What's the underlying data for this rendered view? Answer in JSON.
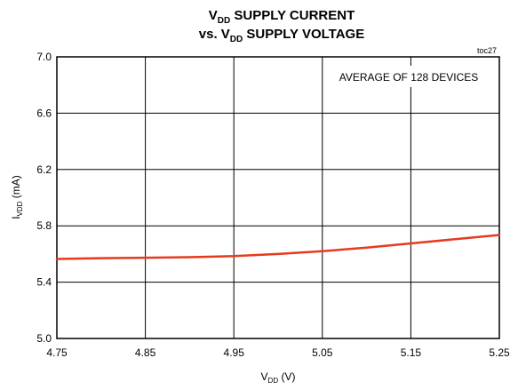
{
  "chart_data": {
    "type": "line",
    "title_line1": {
      "pre": "V",
      "sub": "DD",
      "post": " SUPPLY CURRENT"
    },
    "title_line2": {
      "pre": "vs. V",
      "sub": "DD",
      "post": " SUPPLY VOLTAGE"
    },
    "figure_id": "toc27",
    "annotation": "AVERAGE OF 128 DEVICES",
    "xlabel": {
      "pre": "V",
      "sub": "DD",
      "post": " (V)"
    },
    "ylabel": {
      "pre": "I",
      "sub": "VDD",
      "post": " (mA)"
    },
    "xlim": [
      4.75,
      5.25
    ],
    "ylim": [
      5.0,
      7.0
    ],
    "x_ticks": [
      "4.75",
      "4.85",
      "4.95",
      "5.05",
      "5.15",
      "5.25"
    ],
    "y_ticks": [
      "5.0",
      "5.4",
      "5.8",
      "6.2",
      "6.6",
      "7.0"
    ],
    "grid": true,
    "series": [
      {
        "color": "#e63a1e",
        "x": [
          4.75,
          4.8,
          4.85,
          4.9,
          4.95,
          5.0,
          5.05,
          5.1,
          5.15,
          5.2,
          5.25
        ],
        "y": [
          5.565,
          5.57,
          5.573,
          5.577,
          5.585,
          5.6,
          5.62,
          5.645,
          5.675,
          5.705,
          5.735
        ]
      }
    ]
  }
}
